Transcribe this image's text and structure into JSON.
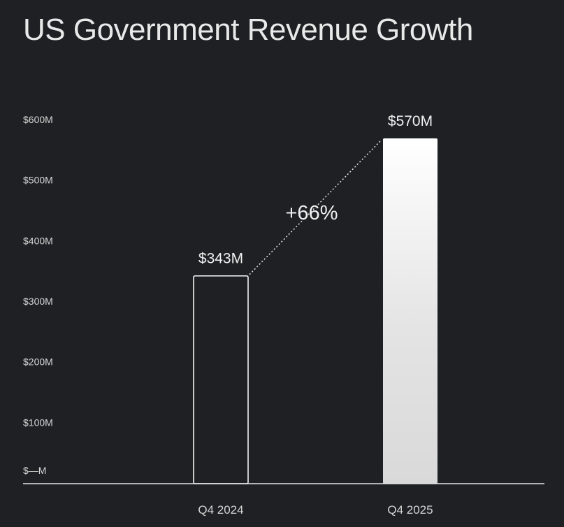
{
  "chart_data": {
    "type": "bar",
    "title": "US Government Revenue Growth",
    "categories": [
      "Q4 2024",
      "Q4 2025"
    ],
    "values": [
      343,
      570
    ],
    "value_labels": [
      "$343M",
      "$570M"
    ],
    "unit": "$M",
    "ylim": [
      0,
      600
    ],
    "yticks": [
      0,
      100,
      200,
      300,
      400,
      500,
      600
    ],
    "ytick_labels": [
      "$—M",
      "$100M",
      "$200M",
      "$300M",
      "$400M",
      "$500M",
      "$600M"
    ],
    "annotation": "+66%",
    "grid": false
  },
  "colors": {
    "background": "#1e2023",
    "text": "#e9e9e9",
    "bar_outline": "#ffffff",
    "bar_fill_top": "#ffffff",
    "bar_fill_bottom": "#d9d9d9"
  }
}
